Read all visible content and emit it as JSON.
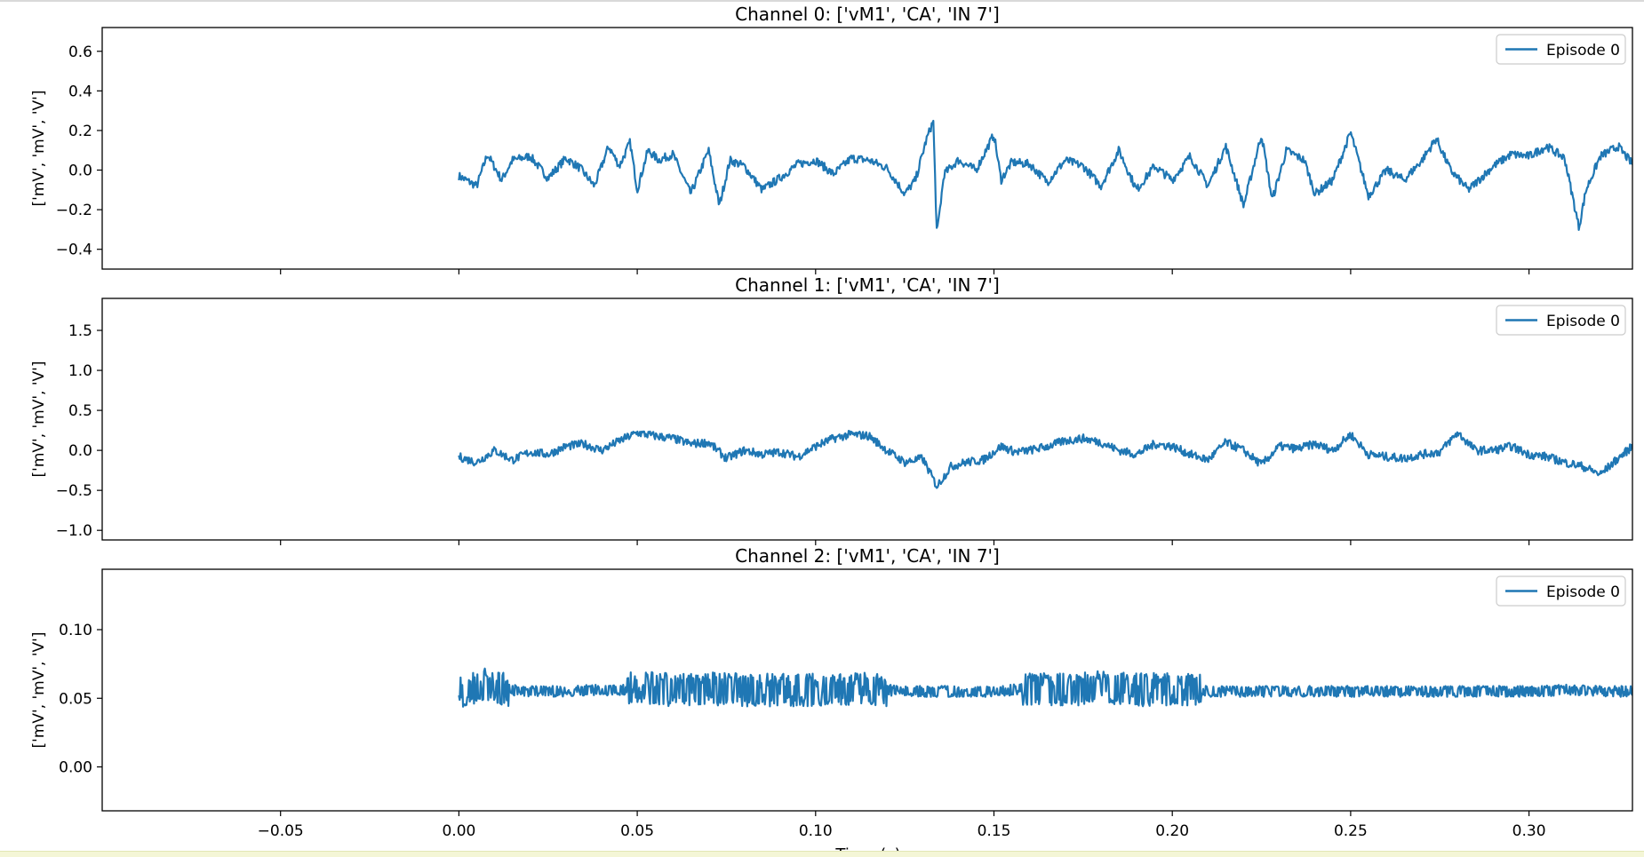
{
  "figure": {
    "xlabel": "Time (s)",
    "line_color": "#1f77b4"
  },
  "chart_data": [
    {
      "type": "line",
      "title": "Channel 0: ['vM1', 'CA', 'IN 7']",
      "xlabel": "",
      "ylabel": "['mV', 'mV', 'V']",
      "xlim": [
        -0.1,
        0.329
      ],
      "ylim": [
        -0.5,
        0.72
      ],
      "xticks": [
        "−0.05",
        "0.00",
        "0.05",
        "0.10",
        "0.15",
        "0.20",
        "0.25",
        "0.30"
      ],
      "xtick_values": [
        -0.05,
        0.0,
        0.05,
        0.1,
        0.15,
        0.2,
        0.25,
        0.3
      ],
      "xticks_labeled": false,
      "yticks": [
        "−0.4",
        "−0.2",
        "0.0",
        "0.2",
        "0.4",
        "0.6"
      ],
      "ytick_values": [
        -0.4,
        -0.2,
        0.0,
        0.2,
        0.4,
        0.6
      ],
      "legend": "top-right",
      "grid": false,
      "series": [
        {
          "name": "Episode 0",
          "x": [
            0.0,
            0.005,
            0.008,
            0.012,
            0.015,
            0.02,
            0.025,
            0.03,
            0.034,
            0.038,
            0.042,
            0.045,
            0.048,
            0.05,
            0.053,
            0.056,
            0.06,
            0.065,
            0.07,
            0.073,
            0.076,
            0.08,
            0.085,
            0.09,
            0.095,
            0.1,
            0.105,
            0.11,
            0.115,
            0.12,
            0.125,
            0.128,
            0.131,
            0.133,
            0.134,
            0.136,
            0.14,
            0.145,
            0.15,
            0.152,
            0.155,
            0.16,
            0.165,
            0.17,
            0.175,
            0.18,
            0.185,
            0.19,
            0.195,
            0.2,
            0.205,
            0.21,
            0.215,
            0.22,
            0.225,
            0.228,
            0.232,
            0.237,
            0.24,
            0.245,
            0.25,
            0.255,
            0.26,
            0.265,
            0.27,
            0.274,
            0.278,
            0.283,
            0.29,
            0.295,
            0.3,
            0.305,
            0.31,
            0.314,
            0.316,
            0.32,
            0.325,
            0.329
          ],
          "y": [
            -0.03,
            -0.08,
            0.08,
            -0.05,
            0.05,
            0.07,
            -0.04,
            0.06,
            0.01,
            -0.08,
            0.12,
            0.02,
            0.14,
            -0.1,
            0.1,
            0.05,
            0.08,
            -0.12,
            0.1,
            -0.18,
            0.05,
            0.02,
            -0.1,
            -0.04,
            0.03,
            0.05,
            -0.02,
            0.06,
            0.05,
            0.01,
            -0.12,
            -0.05,
            0.15,
            0.25,
            -0.33,
            -0.02,
            0.05,
            0.0,
            0.18,
            -0.05,
            0.04,
            0.03,
            -0.06,
            0.05,
            0.02,
            -0.08,
            0.1,
            -0.1,
            0.02,
            -0.05,
            0.07,
            -0.08,
            0.12,
            -0.18,
            0.18,
            -0.15,
            0.1,
            0.05,
            -0.12,
            -0.05,
            0.19,
            -0.13,
            0.0,
            -0.05,
            0.05,
            0.16,
            0.0,
            -0.1,
            0.02,
            0.08,
            0.07,
            0.12,
            0.06,
            -0.29,
            -0.1,
            0.07,
            0.12,
            0.03
          ]
        }
      ]
    },
    {
      "type": "line",
      "title": "Channel 1: ['vM1', 'CA', 'IN 7']",
      "xlabel": "",
      "ylabel": "['mV', 'mV', 'V']",
      "xlim": [
        -0.1,
        0.329
      ],
      "ylim": [
        -1.12,
        1.9
      ],
      "xticks": [
        "−0.05",
        "0.00",
        "0.05",
        "0.10",
        "0.15",
        "0.20",
        "0.25",
        "0.30"
      ],
      "xtick_values": [
        -0.05,
        0.0,
        0.05,
        0.1,
        0.15,
        0.2,
        0.25,
        0.3
      ],
      "xticks_labeled": false,
      "yticks": [
        "−1.0",
        "−0.5",
        "0.0",
        "0.5",
        "1.0",
        "1.5"
      ],
      "ytick_values": [
        -1.0,
        -0.5,
        0.0,
        0.5,
        1.0,
        1.5
      ],
      "legend": "top-right",
      "grid": false,
      "series": [
        {
          "name": "Episode 0",
          "x": [
            0.0,
            0.005,
            0.01,
            0.015,
            0.02,
            0.025,
            0.03,
            0.035,
            0.04,
            0.045,
            0.05,
            0.055,
            0.06,
            0.065,
            0.07,
            0.075,
            0.08,
            0.085,
            0.09,
            0.095,
            0.1,
            0.105,
            0.11,
            0.115,
            0.12,
            0.125,
            0.13,
            0.134,
            0.138,
            0.142,
            0.147,
            0.152,
            0.156,
            0.16,
            0.165,
            0.17,
            0.175,
            0.18,
            0.185,
            0.19,
            0.195,
            0.2,
            0.205,
            0.21,
            0.215,
            0.22,
            0.225,
            0.23,
            0.235,
            0.24,
            0.245,
            0.25,
            0.255,
            0.26,
            0.265,
            0.27,
            0.275,
            0.28,
            0.285,
            0.29,
            0.295,
            0.3,
            0.305,
            0.31,
            0.315,
            0.32,
            0.325,
            0.329
          ],
          "y": [
            -0.08,
            -0.15,
            0.0,
            -0.12,
            -0.02,
            -0.05,
            0.05,
            0.08,
            0.0,
            0.12,
            0.22,
            0.18,
            0.15,
            0.08,
            0.1,
            -0.1,
            0.0,
            -0.05,
            -0.02,
            -0.08,
            0.05,
            0.15,
            0.2,
            0.18,
            0.0,
            -0.15,
            -0.1,
            -0.45,
            -0.2,
            -0.15,
            -0.12,
            0.05,
            -0.02,
            0.0,
            0.05,
            0.12,
            0.15,
            0.1,
            0.0,
            -0.05,
            0.08,
            0.05,
            -0.05,
            -0.12,
            0.1,
            0.0,
            -0.18,
            0.05,
            0.02,
            0.08,
            0.0,
            0.2,
            -0.05,
            -0.08,
            -0.1,
            -0.05,
            -0.02,
            0.22,
            0.0,
            0.0,
            0.05,
            -0.05,
            -0.08,
            -0.15,
            -0.2,
            -0.3,
            -0.1,
            0.05
          ]
        }
      ]
    },
    {
      "type": "line",
      "title": "Channel 2: ['vM1', 'CA', 'IN 7']",
      "xlabel": "Time (s)",
      "ylabel": "['mV', 'mV', 'V']",
      "xlim": [
        -0.1,
        0.329
      ],
      "ylim": [
        -0.032,
        0.144
      ],
      "xticks": [
        "−0.05",
        "0.00",
        "0.05",
        "0.10",
        "0.15",
        "0.20",
        "0.25",
        "0.30"
      ],
      "xtick_values": [
        -0.05,
        0.0,
        0.05,
        0.1,
        0.15,
        0.2,
        0.25,
        0.3
      ],
      "xticks_labeled": true,
      "yticks": [
        "0.00",
        "0.05",
        "0.10"
      ],
      "ytick_values": [
        0.0,
        0.05,
        0.1
      ],
      "legend": "top-right",
      "grid": false,
      "series": [
        {
          "name": "Episode 0",
          "x": [
            0.0,
            0.007,
            0.014,
            0.02,
            0.03,
            0.035,
            0.045,
            0.05,
            0.06,
            0.07,
            0.08,
            0.09,
            0.1,
            0.105,
            0.115,
            0.12,
            0.13,
            0.14,
            0.15,
            0.16,
            0.17,
            0.18,
            0.19,
            0.2,
            0.205,
            0.21,
            0.22,
            0.23,
            0.24,
            0.25,
            0.26,
            0.27,
            0.28,
            0.29,
            0.3,
            0.31,
            0.32,
            0.329
          ],
          "y": [
            0.055,
            0.06,
            0.056,
            0.055,
            0.055,
            0.056,
            0.056,
            0.058,
            0.056,
            0.057,
            0.056,
            0.056,
            0.056,
            0.057,
            0.057,
            0.056,
            0.055,
            0.055,
            0.055,
            0.057,
            0.056,
            0.058,
            0.056,
            0.057,
            0.056,
            0.055,
            0.055,
            0.055,
            0.055,
            0.055,
            0.055,
            0.055,
            0.055,
            0.055,
            0.055,
            0.056,
            0.055,
            0.055
          ]
        }
      ]
    }
  ]
}
